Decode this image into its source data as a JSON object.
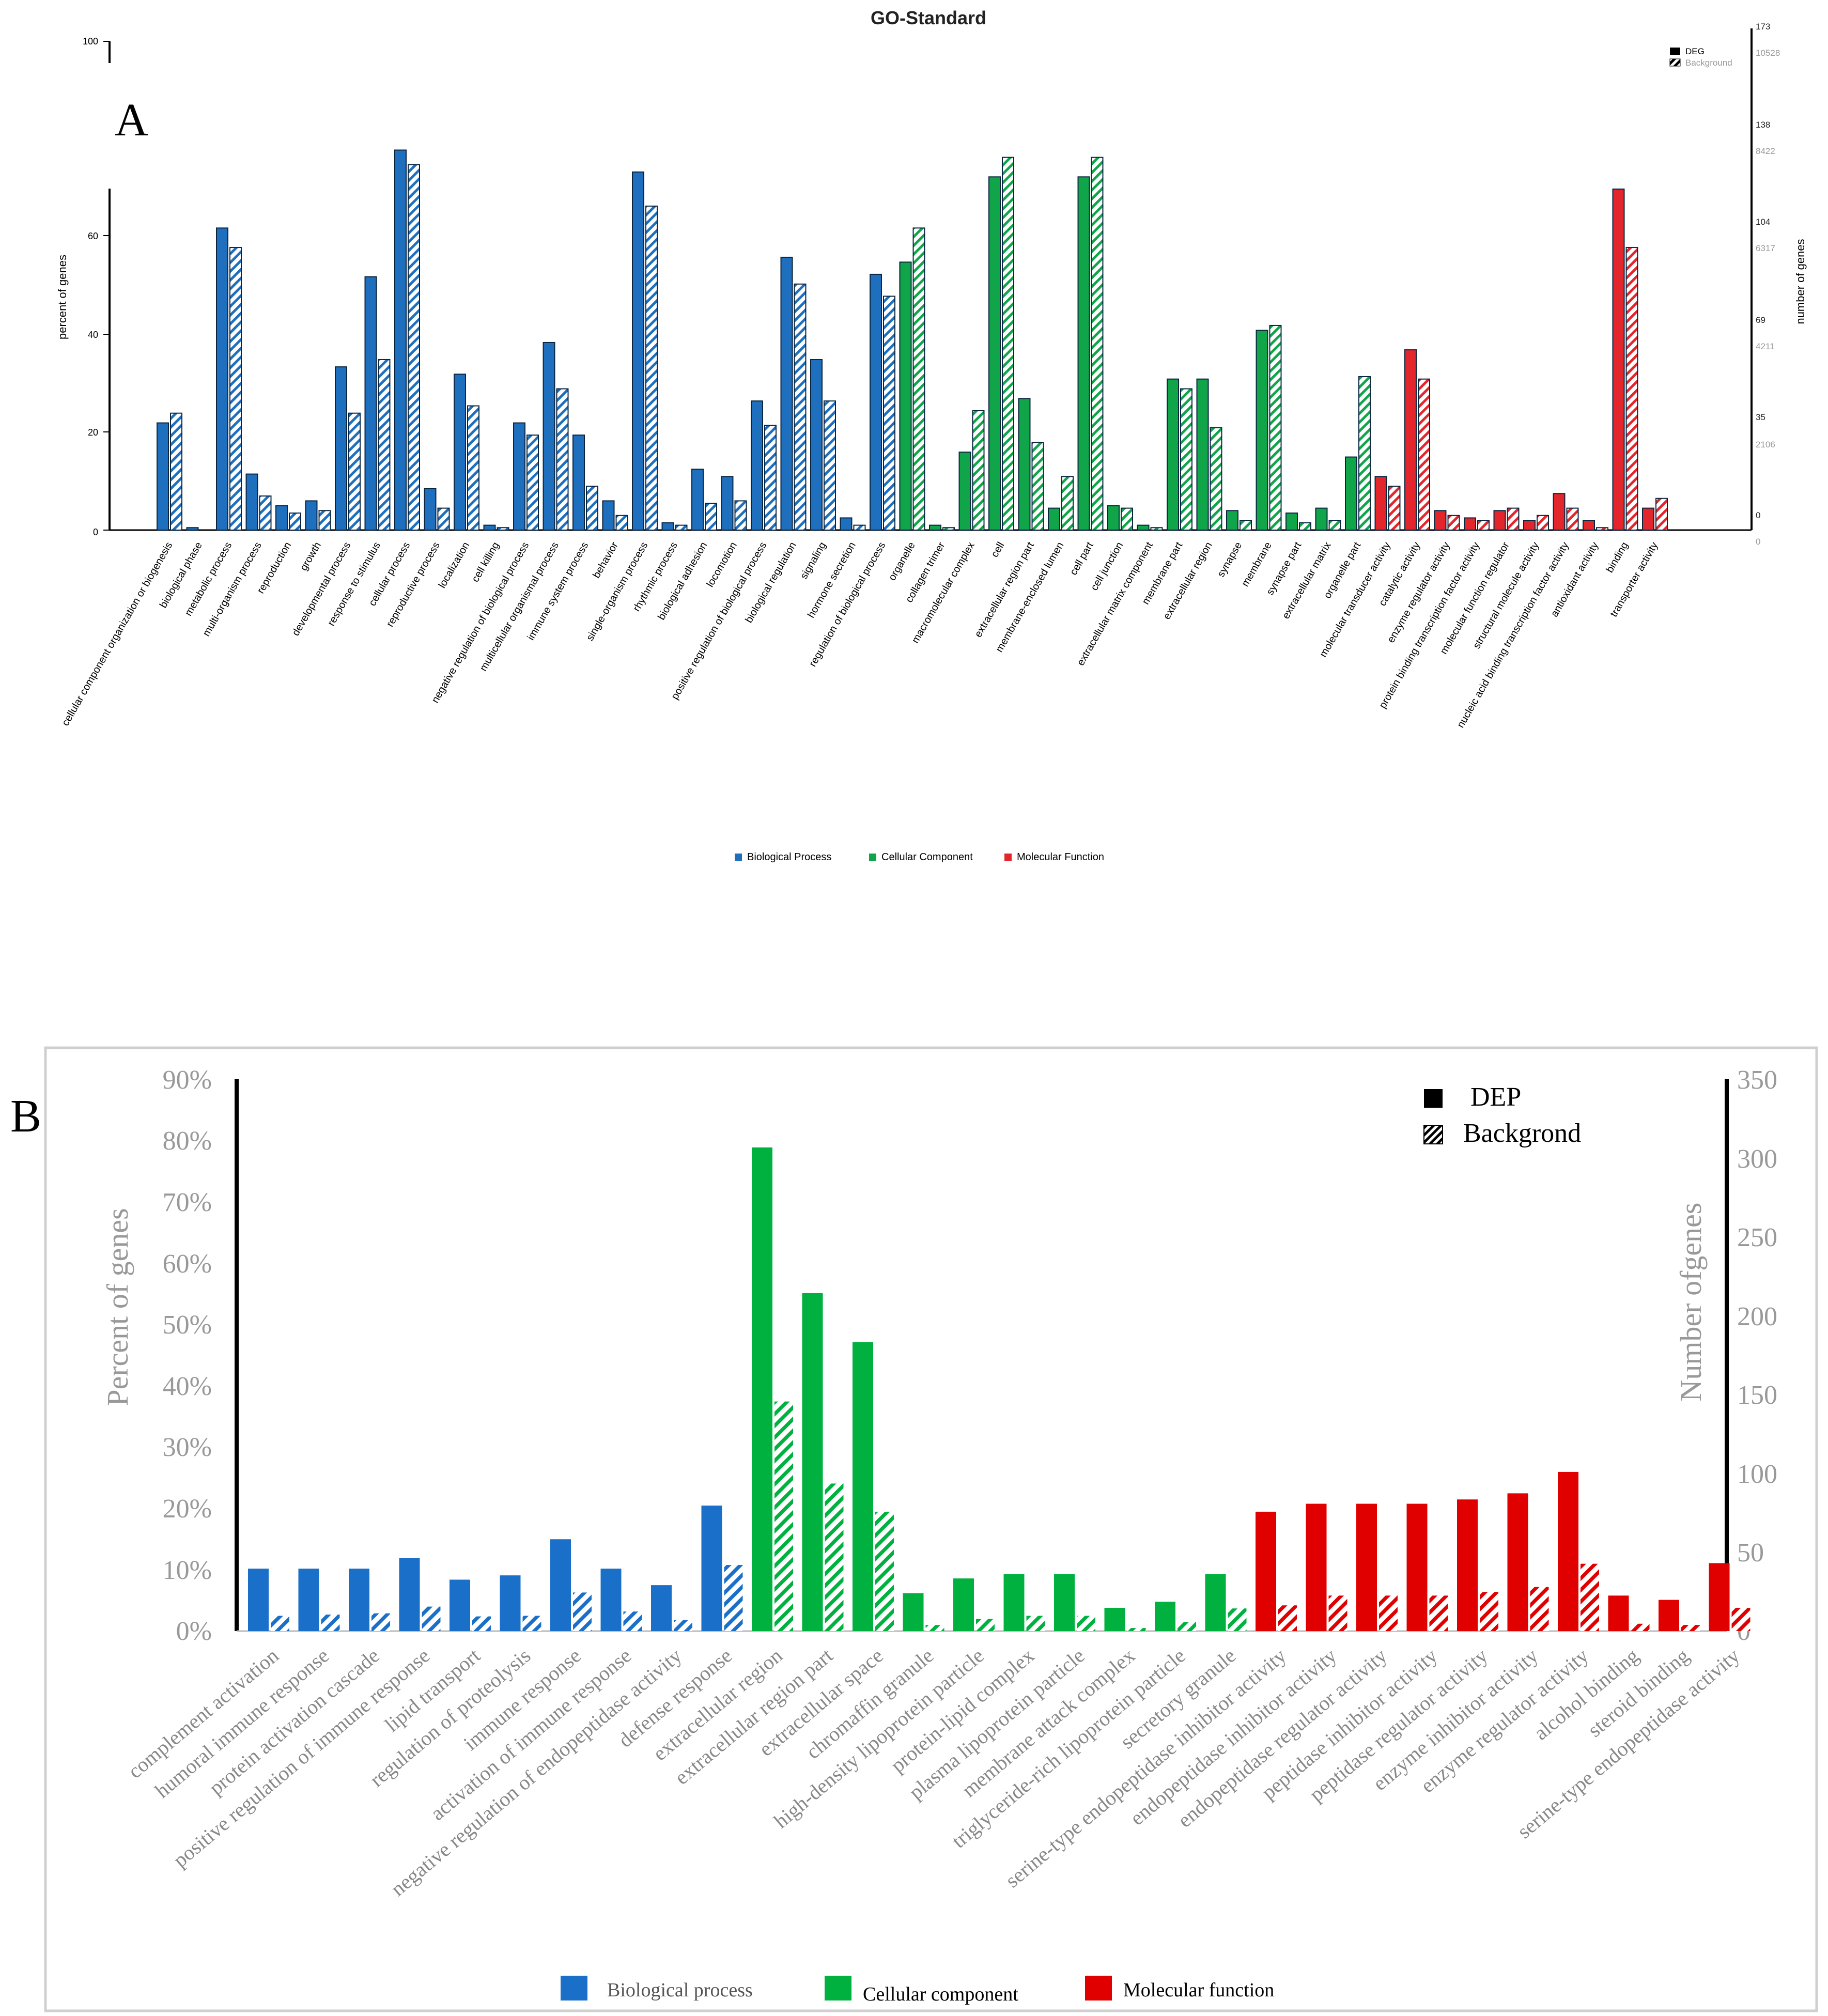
{
  "colors": {
    "bp_a": "#1f6fbf",
    "cc_a": "#11a54a",
    "mf_a": "#e3262b",
    "bp_b": "#1a70c8",
    "cc_b": "#00b140",
    "mf_b": "#e00000"
  },
  "panel_a": {
    "panel_label": "A",
    "title": "GO-Standard",
    "ylabel_left": "percent of genes",
    "ylabel_right": "number of genes",
    "left_ticks": [
      "0",
      "20",
      "40",
      "60",
      "100"
    ],
    "right_deg_ticks": [
      "0",
      "35",
      "69",
      "104",
      "138",
      "173"
    ],
    "right_bg_ticks": [
      "0",
      "2106",
      "4211",
      "6317",
      "8422",
      "10528"
    ],
    "legend_deg": "DEG",
    "legend_bg": "Background",
    "group_legend": {
      "bp": "Biological Process",
      "cc": "Cellular Component",
      "mf": "Molecular Function"
    }
  },
  "panel_b": {
    "panel_label": "B",
    "ylabel_left": "Percent of genes",
    "ylabel_right": "Number ofgenes",
    "left_ticks": [
      "0%",
      "10%",
      "20%",
      "30%",
      "40%",
      "50%",
      "60%",
      "70%",
      "80%",
      "90%"
    ],
    "right_ticks": [
      "0",
      "50",
      "100",
      "150",
      "200",
      "250",
      "300",
      "350"
    ],
    "legend_dep": "DEP",
    "legend_bg": "Backgrond",
    "group_legend": {
      "bp": "Biological process",
      "cc": "Cellular component",
      "mf": "Molecular function"
    }
  },
  "chart_data": [
    {
      "type": "bar",
      "title": "GO-Standard",
      "ylim": [
        0,
        100
      ],
      "categories": [
        {
          "label": "cellular component organization or biogenesis",
          "group": "bp",
          "deg": 22,
          "bg": 24
        },
        {
          "label": "biological phase",
          "group": "bp",
          "deg": 0.5,
          "bg": 0
        },
        {
          "label": "metabolic process",
          "group": "bp",
          "deg": 62,
          "bg": 58
        },
        {
          "label": "multi-organism process",
          "group": "bp",
          "deg": 11.5,
          "bg": 7
        },
        {
          "label": "reproduction",
          "group": "bp",
          "deg": 5,
          "bg": 3.5
        },
        {
          "label": "growth",
          "group": "bp",
          "deg": 6,
          "bg": 4
        },
        {
          "label": "developmental process",
          "group": "bp",
          "deg": 33.5,
          "bg": 24
        },
        {
          "label": "response to stimulus",
          "group": "bp",
          "deg": 52,
          "bg": 35
        },
        {
          "label": "cellular process",
          "group": "bp",
          "deg": 78,
          "bg": 75
        },
        {
          "label": "reproductive process",
          "group": "bp",
          "deg": 8.5,
          "bg": 4.5
        },
        {
          "label": "localization",
          "group": "bp",
          "deg": 32,
          "bg": 25.5
        },
        {
          "label": "cell killing",
          "group": "bp",
          "deg": 1,
          "bg": 0.5
        },
        {
          "label": "negative regulation of biological process",
          "group": "bp",
          "deg": 22,
          "bg": 19.5
        },
        {
          "label": "multicellular organismal process",
          "group": "bp",
          "deg": 38.5,
          "bg": 29
        },
        {
          "label": "immune system process",
          "group": "bp",
          "deg": 19.5,
          "bg": 9
        },
        {
          "label": "behavior",
          "group": "bp",
          "deg": 6,
          "bg": 3
        },
        {
          "label": "single-organism process",
          "group": "bp",
          "deg": 73.5,
          "bg": 66.5
        },
        {
          "label": "rhythmic process",
          "group": "bp",
          "deg": 1.5,
          "bg": 1
        },
        {
          "label": "biological adhesion",
          "group": "bp",
          "deg": 12.5,
          "bg": 5.5
        },
        {
          "label": "locomotion",
          "group": "bp",
          "deg": 11,
          "bg": 6
        },
        {
          "label": "positive regulation of biological process",
          "group": "bp",
          "deg": 26.5,
          "bg": 21.5
        },
        {
          "label": "biological regulation",
          "group": "bp",
          "deg": 56,
          "bg": 50.5
        },
        {
          "label": "signaling",
          "group": "bp",
          "deg": 35,
          "bg": 26.5
        },
        {
          "label": "hormone secretion",
          "group": "bp",
          "deg": 2.5,
          "bg": 1
        },
        {
          "label": "regulation of biological process",
          "group": "bp",
          "deg": 52.5,
          "bg": 48
        },
        {
          "label": "organelle",
          "group": "cc",
          "deg": 55,
          "bg": 62
        },
        {
          "label": "collagen trimer",
          "group": "cc",
          "deg": 1,
          "bg": 0.5
        },
        {
          "label": "macromolecular complex",
          "group": "cc",
          "deg": 16,
          "bg": 24.5
        },
        {
          "label": "cell",
          "group": "cc",
          "deg": 72.5,
          "bg": 76.5
        },
        {
          "label": "extracellular region part",
          "group": "cc",
          "deg": 27,
          "bg": 18
        },
        {
          "label": "membrane-enclosed lumen",
          "group": "cc",
          "deg": 4.5,
          "bg": 11
        },
        {
          "label": "cell part",
          "group": "cc",
          "deg": 72.5,
          "bg": 76.5
        },
        {
          "label": "cell junction",
          "group": "cc",
          "deg": 5,
          "bg": 4.5
        },
        {
          "label": "extracellular matrix component",
          "group": "cc",
          "deg": 1,
          "bg": 0.5
        },
        {
          "label": "membrane part",
          "group": "cc",
          "deg": 31,
          "bg": 29
        },
        {
          "label": "extracellular region",
          "group": "cc",
          "deg": 31,
          "bg": 21
        },
        {
          "label": "synapse",
          "group": "cc",
          "deg": 4,
          "bg": 2
        },
        {
          "label": "membrane",
          "group": "cc",
          "deg": 41,
          "bg": 42
        },
        {
          "label": "synapse part",
          "group": "cc",
          "deg": 3.5,
          "bg": 1.5
        },
        {
          "label": "extracellular matrix",
          "group": "cc",
          "deg": 4.5,
          "bg": 2
        },
        {
          "label": "organelle part",
          "group": "cc",
          "deg": 15,
          "bg": 31.5
        },
        {
          "label": "molecular transducer activity",
          "group": "mf",
          "deg": 11,
          "bg": 9
        },
        {
          "label": "catalytic activity",
          "group": "mf",
          "deg": 37,
          "bg": 31
        },
        {
          "label": "enzyme regulator activity",
          "group": "mf",
          "deg": 4,
          "bg": 3
        },
        {
          "label": "protein binding transcription factor activity",
          "group": "mf",
          "deg": 2.5,
          "bg": 2
        },
        {
          "label": "molecular function regulator",
          "group": "mf",
          "deg": 4,
          "bg": 4.5
        },
        {
          "label": "structural molecule activity",
          "group": "mf",
          "deg": 2,
          "bg": 3
        },
        {
          "label": "nucleic acid binding transcription factor activity",
          "group": "mf",
          "deg": 7.5,
          "bg": 4.5
        },
        {
          "label": "antioxidant activity",
          "group": "mf",
          "deg": 2,
          "bg": 0.5
        },
        {
          "label": "binding",
          "group": "mf",
          "deg": 70,
          "bg": 58
        },
        {
          "label": "transporter activity",
          "group": "mf",
          "deg": 4.5,
          "bg": 6.5
        }
      ]
    },
    {
      "type": "bar",
      "title": "",
      "ylim": [
        0,
        90
      ],
      "categories": [
        {
          "label": "complement activation",
          "group": "bp",
          "dep": 10.2,
          "bg": 2.5
        },
        {
          "label": "humoral immune response",
          "group": "bp",
          "dep": 10.2,
          "bg": 2.7
        },
        {
          "label": "protein activation cascade",
          "group": "bp",
          "dep": 10.2,
          "bg": 2.9
        },
        {
          "label": "positive regulation of immune response",
          "group": "bp",
          "dep": 11.9,
          "bg": 4
        },
        {
          "label": "lipid transport",
          "group": "bp",
          "dep": 8.4,
          "bg": 2.4
        },
        {
          "label": "regulation of proteolysis",
          "group": "bp",
          "dep": 9.1,
          "bg": 2.5
        },
        {
          "label": "immune response",
          "group": "bp",
          "dep": 15,
          "bg": 6.3
        },
        {
          "label": "activation of immune response",
          "group": "bp",
          "dep": 10.2,
          "bg": 3.2
        },
        {
          "label": "negative regulation of endopeptidase activity",
          "group": "bp",
          "dep": 7.5,
          "bg": 1.8
        },
        {
          "label": "defense response",
          "group": "bp",
          "dep": 20.5,
          "bg": 10.8
        },
        {
          "label": "extracellular region",
          "group": "cc",
          "dep": 79,
          "bg": 37.5
        },
        {
          "label": "extracellular region part",
          "group": "cc",
          "dep": 55.2,
          "bg": 24.1
        },
        {
          "label": "extracellular space",
          "group": "cc",
          "dep": 47.2,
          "bg": 19.5
        },
        {
          "label": "chromaffin granule",
          "group": "cc",
          "dep": 6.2,
          "bg": 1
        },
        {
          "label": "high-density lipoprotein particle",
          "group": "cc",
          "dep": 8.6,
          "bg": 2
        },
        {
          "label": "protein-lipid complex",
          "group": "cc",
          "dep": 9.3,
          "bg": 2.5
        },
        {
          "label": "plasma lipoprotein particle",
          "group": "cc",
          "dep": 9.3,
          "bg": 2.5
        },
        {
          "label": "membrane attack complex",
          "group": "cc",
          "dep": 3.8,
          "bg": 0.5
        },
        {
          "label": "triglyceride-rich lipoprotein particle",
          "group": "cc",
          "dep": 4.8,
          "bg": 1.5
        },
        {
          "label": "secretory granule",
          "group": "cc",
          "dep": 9.3,
          "bg": 3.7
        },
        {
          "label": "serine-type endopeptidase inhibitor activity",
          "group": "mf",
          "dep": 19.5,
          "bg": 4.2
        },
        {
          "label": "endopeptidase inhibitor activity",
          "group": "mf",
          "dep": 20.8,
          "bg": 5.8
        },
        {
          "label": "endopeptidase regulator activity",
          "group": "mf",
          "dep": 20.8,
          "bg": 5.8
        },
        {
          "label": "peptidase inhibitor activity",
          "group": "mf",
          "dep": 20.8,
          "bg": 5.8
        },
        {
          "label": "peptidase regulator activity",
          "group": "mf",
          "dep": 21.5,
          "bg": 6.4
        },
        {
          "label": "enzyme inhibitor activity",
          "group": "mf",
          "dep": 22.5,
          "bg": 7.2
        },
        {
          "label": "enzyme regulator activity",
          "group": "mf",
          "dep": 26,
          "bg": 11
        },
        {
          "label": "alcohol binding",
          "group": "mf",
          "dep": 5.8,
          "bg": 1.2
        },
        {
          "label": "steroid binding",
          "group": "mf",
          "dep": 5.1,
          "bg": 1
        },
        {
          "label": "serine-type endopeptidase activity",
          "group": "mf",
          "dep": 11.1,
          "bg": 3.8
        }
      ]
    }
  ]
}
